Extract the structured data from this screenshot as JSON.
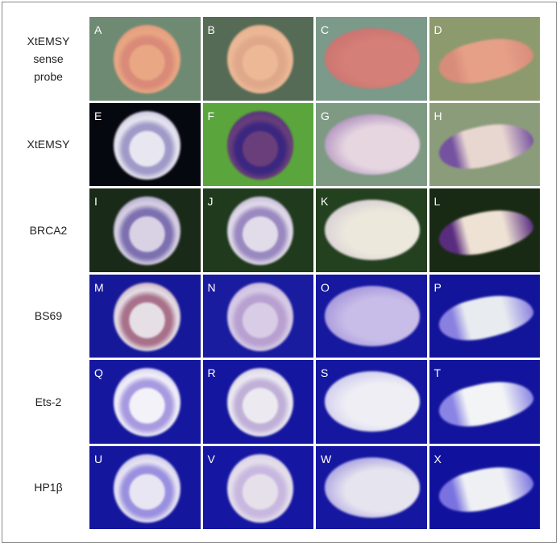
{
  "row_labels": [
    "XtEMSY sense probe",
    "XtEMSY",
    "BRCA2",
    "BS69",
    "Ets-2",
    "HP1β"
  ],
  "row_labels_lines": [
    [
      "XtEMSY",
      "sense",
      "probe"
    ],
    [
      "XtEMSY"
    ],
    [
      "BRCA2"
    ],
    [
      "BS69"
    ],
    [
      "Ets-2"
    ],
    [
      "HP1β"
    ]
  ],
  "panels": [
    {
      "letter": "A",
      "bg": "#6f8a73",
      "embryo": "#e9a783",
      "stain": "#d98a78",
      "shape": "round"
    },
    {
      "letter": "B",
      "bg": "#556b55",
      "embryo": "#ecb896",
      "stain": "#e0a88a",
      "shape": "round"
    },
    {
      "letter": "C",
      "bg": "#7b9a8a",
      "embryo": "#d47f77",
      "stain": "#c46a6c",
      "shape": "oval"
    },
    {
      "letter": "D",
      "bg": "#8d9a6e",
      "embryo": "#e7a088",
      "stain": "#d88c7a",
      "shape": "tadpole"
    },
    {
      "letter": "E",
      "bg": "#060810",
      "embryo": "#e8e6f0",
      "stain": "#9f9ac8",
      "shape": "round"
    },
    {
      "letter": "F",
      "bg": "#5aa63c",
      "embryo": "#6a3e7a",
      "stain": "#3b2680",
      "shape": "round"
    },
    {
      "letter": "G",
      "bg": "#7e9a83",
      "embryo": "#e6d6e0",
      "stain": "#8a60a8",
      "shape": "oval"
    },
    {
      "letter": "H",
      "bg": "#8b9c7a",
      "embryo": "#e8d6d0",
      "stain": "#7552a0",
      "shape": "tadpole"
    },
    {
      "letter": "I",
      "bg": "#1a2a18",
      "embryo": "#d9d2e4",
      "stain": "#7c70b0",
      "shape": "round"
    },
    {
      "letter": "J",
      "bg": "#1f3a1c",
      "embryo": "#e2dcea",
      "stain": "#9a88c0",
      "shape": "round"
    },
    {
      "letter": "K",
      "bg": "#23401f",
      "embryo": "#ece8dc",
      "stain": "#c8bcd0",
      "shape": "oval"
    },
    {
      "letter": "L",
      "bg": "#182a14",
      "embryo": "#eee2d4",
      "stain": "#5a2c80",
      "shape": "tadpole"
    },
    {
      "letter": "M",
      "bg": "#16189a",
      "embryo": "#e6e0e6",
      "stain": "#a8708a",
      "shape": "round"
    },
    {
      "letter": "N",
      "bg": "#1a1ca0",
      "embryo": "#d8cce6",
      "stain": "#b8a0d0",
      "shape": "round"
    },
    {
      "letter": "O",
      "bg": "#1618a0",
      "embryo": "#c8bce8",
      "stain": "#8a78d0",
      "shape": "oval"
    },
    {
      "letter": "P",
      "bg": "#12149a",
      "embryo": "#e8ecf0",
      "stain": "#8a80e0",
      "shape": "tadpole"
    },
    {
      "letter": "Q",
      "bg": "#15179e",
      "embryo": "#f2f2f8",
      "stain": "#a89ae0",
      "shape": "round"
    },
    {
      "letter": "R",
      "bg": "#1416a0",
      "embryo": "#eceaf0",
      "stain": "#c0b0d8",
      "shape": "round"
    },
    {
      "letter": "S",
      "bg": "#1517a0",
      "embryo": "#eeeef4",
      "stain": "#b8b0e8",
      "shape": "oval"
    },
    {
      "letter": "T",
      "bg": "#12149e",
      "embryo": "#f2f4f6",
      "stain": "#8a84e4",
      "shape": "tadpole"
    },
    {
      "letter": "U",
      "bg": "#14169e",
      "embryo": "#e8e6f2",
      "stain": "#9a90e0",
      "shape": "round"
    },
    {
      "letter": "V",
      "bg": "#1517a2",
      "embryo": "#e6e0ea",
      "stain": "#c8b8e0",
      "shape": "round"
    },
    {
      "letter": "W",
      "bg": "#1517a0",
      "embryo": "#e6e4ee",
      "stain": "#7c70d8",
      "shape": "oval"
    },
    {
      "letter": "X",
      "bg": "#10129e",
      "embryo": "#eef0f4",
      "stain": "#7a72e0",
      "shape": "tadpole"
    }
  ]
}
